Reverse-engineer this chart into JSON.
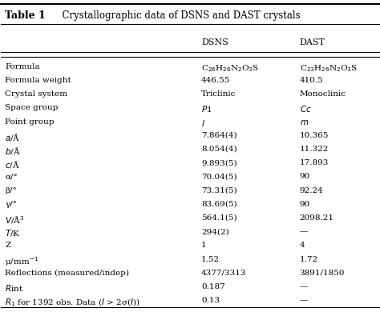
{
  "title": "Table 1",
  "title_desc": "Crystallographic data of DSNS and DAST crystals",
  "col_headers": [
    "",
    "DSNS",
    "DAST"
  ],
  "rows": [
    [
      "Formula",
      "C$_{26}$H$_{26}$N$_2$O$_3$S",
      "C$_{23}$H$_{26}$N$_2$O$_3$S"
    ],
    [
      "Formula weight",
      "446.55",
      "410.5"
    ],
    [
      "Crystal system",
      "Triclinic",
      "Monoclinic"
    ],
    [
      "Space group",
      "$P$1",
      "$Cc$"
    ],
    [
      "Point group",
      "$l$",
      "$m$"
    ],
    [
      "$a$/Å",
      "7.864(4)",
      "10.365"
    ],
    [
      "$b$/Å",
      "8.054(4)",
      "11.322"
    ],
    [
      "$c$/Å",
      "9.893(5)",
      "17.893"
    ],
    [
      "α/°",
      "70.04(5)",
      "90"
    ],
    [
      "β/°",
      "73.31(5)",
      "92.24"
    ],
    [
      "γ/°",
      "83.69(5)",
      "90"
    ],
    [
      "$V$/Å$^3$",
      "564.1(5)",
      "2098.21"
    ],
    [
      "$T$/K",
      "294(2)",
      "—"
    ],
    [
      "Z",
      "1",
      "4"
    ],
    [
      "μ/mm$^{-1}$",
      "1.52",
      "1.72"
    ],
    [
      "Reflections (measured/indep)",
      "4377/3313",
      "3891/1850"
    ],
    [
      "$R$int",
      "0.187",
      "—"
    ],
    [
      "$R$$_1$ for 1392 obs. Data ($I$ > 2σ($I$))",
      "0.13",
      "—"
    ]
  ],
  "bg_color": "#ffffff",
  "header_line_color": "#000000",
  "font_size": 7.5,
  "title_font_size": 9.0
}
